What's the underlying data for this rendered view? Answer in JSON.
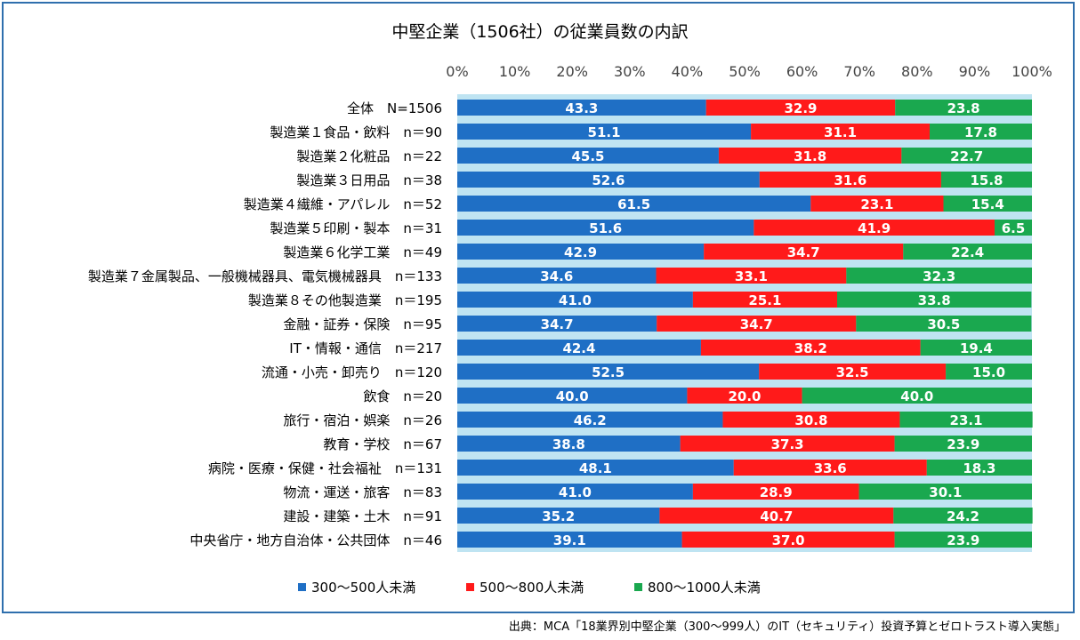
{
  "chart_data": {
    "type": "bar",
    "orientation": "horizontal",
    "stacked": true,
    "title": "中堅企業（1506社）の従業員数の内訳",
    "xlim": [
      0,
      100
    ],
    "x_ticks": [
      "0%",
      "10%",
      "20%",
      "30%",
      "40%",
      "50%",
      "60%",
      "70%",
      "80%",
      "90%",
      "100%"
    ],
    "legend_position": "bottom",
    "categories": [
      "全体　N=1506",
      "製造業１食品・飲料　n＝90",
      "製造業２化粧品　n＝22",
      "製造業３日用品　n＝38",
      "製造業４繊維・アパレル　n＝52",
      "製造業５印刷・製本　n＝31",
      "製造業６化学工業　n＝49",
      "製造業７金属製品、一般機械器具、電気機械器具　n＝133",
      "製造業８その他製造業　n＝195",
      "金融・証券・保険　n＝95",
      "IT・情報・通信　n＝217",
      "流通・小売・卸売り　n＝120",
      "飲食　n＝20",
      "旅行・宿泊・娯楽　n＝26",
      "教育・学校　n＝67",
      "病院・医療・保健・社会福祉　n＝131",
      "物流・運送・旅客　n＝83",
      "建設・建築・土木　n＝91",
      "中央省庁・地方自治体・公共団体　n＝46"
    ],
    "series": [
      {
        "name": "300～500人未満",
        "color": "#1f6fc5",
        "values": [
          43.3,
          51.1,
          45.5,
          52.6,
          61.5,
          51.6,
          42.9,
          34.6,
          41.0,
          34.7,
          42.4,
          52.5,
          40.0,
          46.2,
          38.8,
          48.1,
          41.0,
          35.2,
          39.1
        ]
      },
      {
        "name": "500～800人未満",
        "color": "#ff1a1a",
        "values": [
          32.9,
          31.1,
          31.8,
          31.6,
          23.1,
          41.9,
          34.7,
          33.1,
          25.1,
          34.7,
          38.2,
          32.5,
          20.0,
          30.8,
          37.3,
          33.6,
          28.9,
          40.7,
          37.0
        ]
      },
      {
        "name": "800～1000人未満",
        "color": "#1aa84f",
        "values": [
          23.8,
          17.8,
          22.7,
          15.8,
          15.4,
          6.5,
          22.4,
          32.3,
          33.8,
          30.5,
          19.4,
          15.0,
          40.0,
          23.1,
          23.9,
          18.3,
          30.1,
          24.2,
          23.9
        ]
      }
    ],
    "plot_background": "#bfe4f2"
  },
  "source": "出典：MCA「18業界別中堅企業（300～999人）のIT（セキュリティ）投資予算とゼロトラスト導入実態」"
}
